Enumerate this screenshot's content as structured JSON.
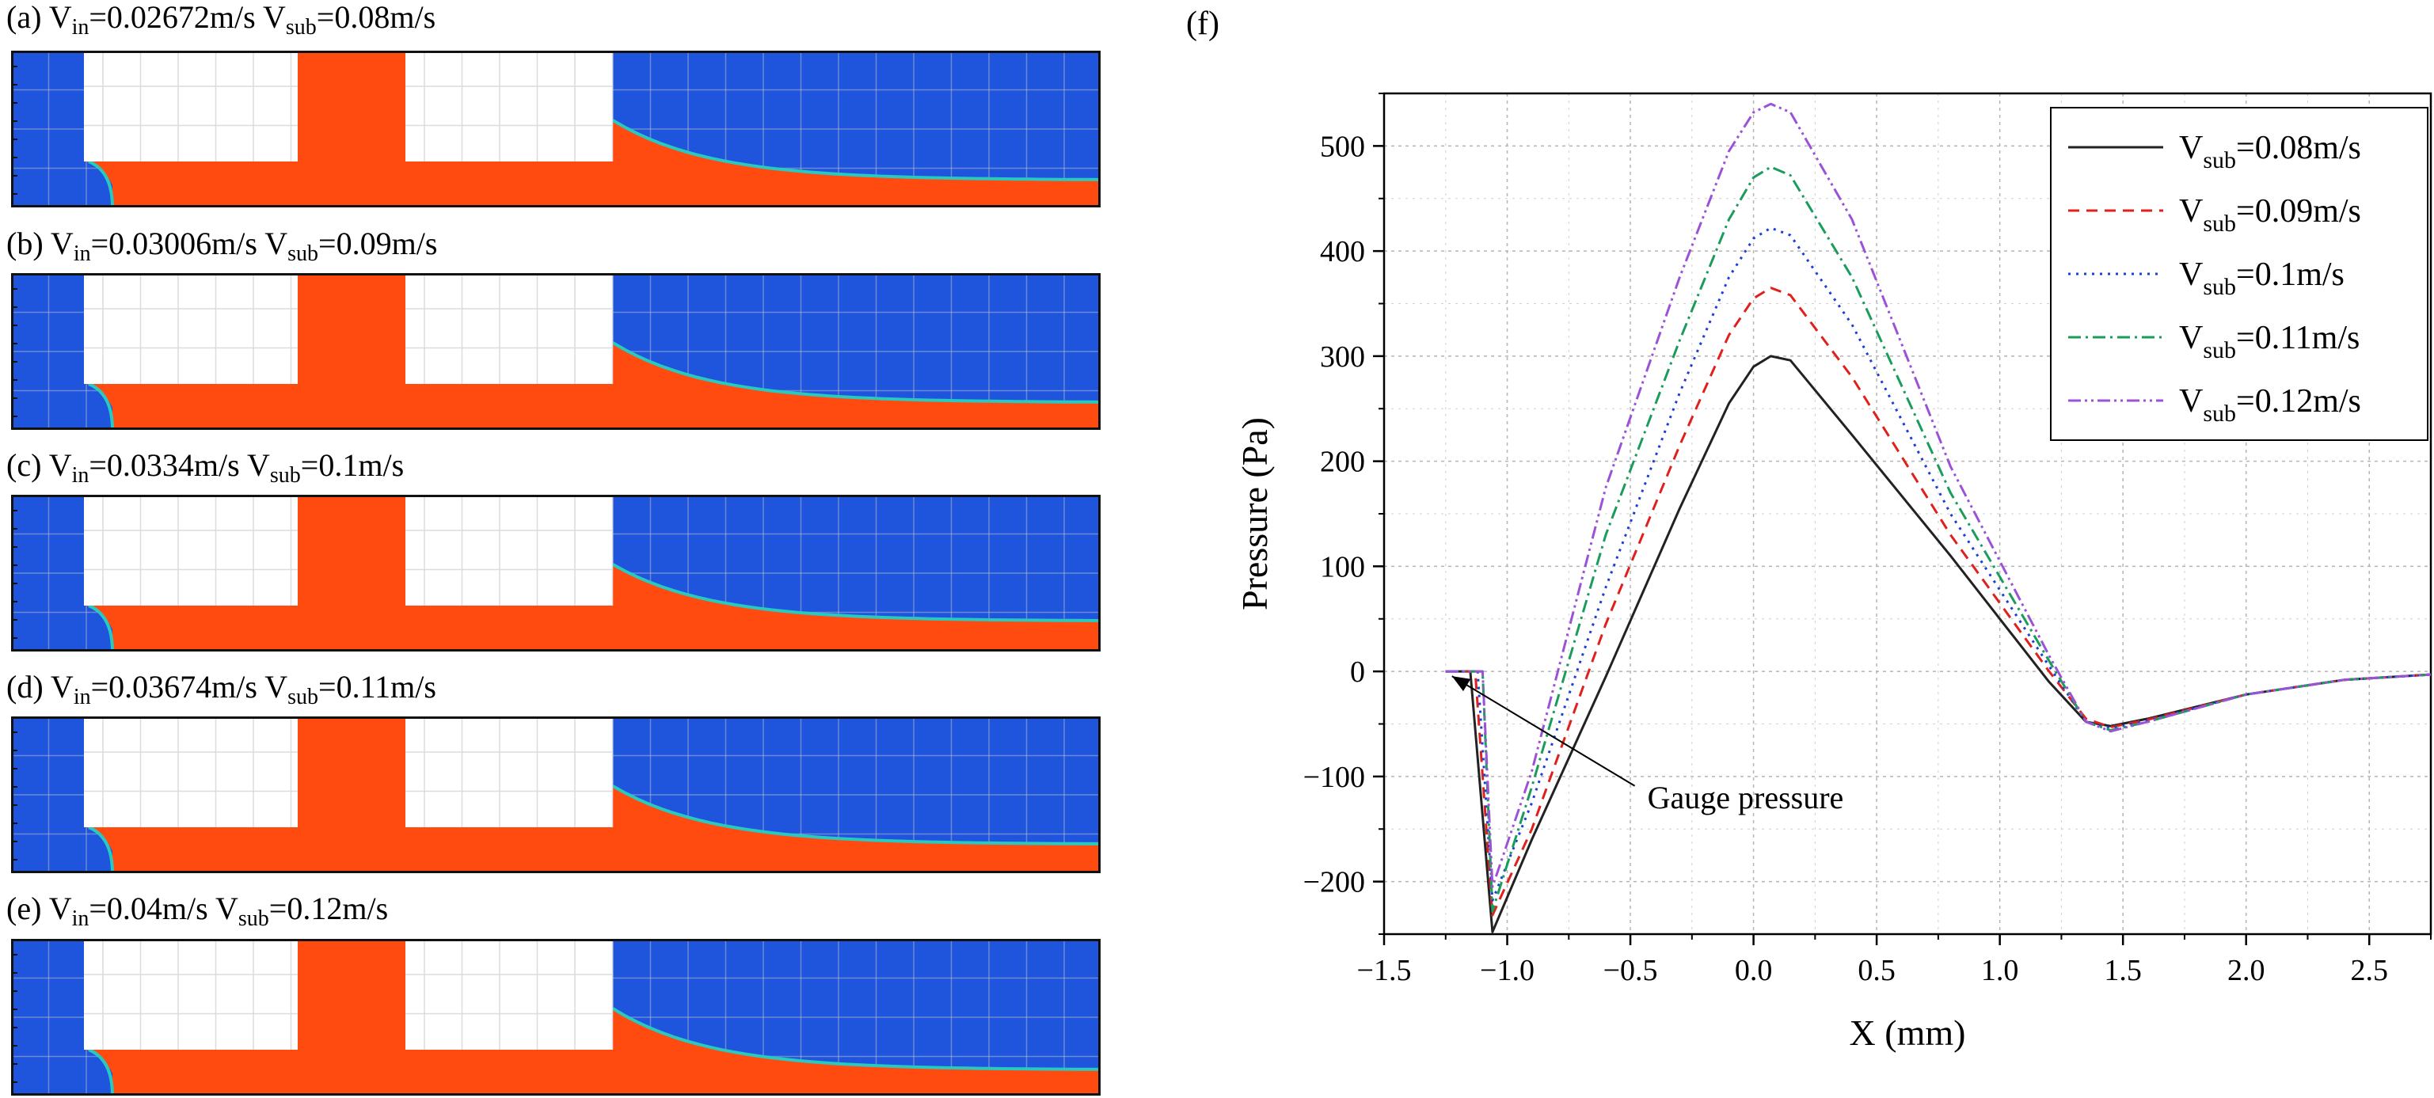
{
  "colors": {
    "gas": "#1e55dc",
    "liquid": "#ff4a10",
    "interface": "#2ac9c0",
    "block": "#ffffff",
    "grid": "#c8c8c8"
  },
  "panels": [
    {
      "letter": "(a)",
      "vin_prefix": "V",
      "vin_sub": "in",
      "vin_value": "=0.02672m/s",
      "vsub_prefix": "V",
      "vsub_sub": "sub",
      "vsub_value": "=0.08m/s",
      "tail_level": 0.2
    },
    {
      "letter": "(b)",
      "vin_prefix": "V",
      "vin_sub": "in",
      "vin_value": "=0.03006m/s",
      "vsub_prefix": "V",
      "vsub_sub": "sub",
      "vsub_value": "=0.09m/s",
      "tail_level": 0.2
    },
    {
      "letter": "(c)",
      "vin_prefix": "V",
      "vin_sub": "in",
      "vin_value": "=0.0334m/s",
      "vsub_prefix": "V",
      "vsub_sub": "sub",
      "vsub_value": "=0.1m/s",
      "tail_level": 0.22
    },
    {
      "letter": "(d)",
      "vin_prefix": "V",
      "vin_sub": "in",
      "vin_value": "=0.03674m/s",
      "vsub_prefix": "V",
      "vsub_sub": "sub",
      "vsub_value": "=0.11m/s",
      "tail_level": 0.21
    },
    {
      "letter": "(e)",
      "vin_prefix": "V",
      "vin_sub": "in",
      "vin_value": "=0.04m/s",
      "vsub_prefix": "V",
      "vsub_sub": "sub",
      "vsub_value": "=0.12m/s",
      "tail_level": 0.19
    }
  ],
  "chart_panel_label": "(f)",
  "chart_data": {
    "type": "line",
    "title": "",
    "xlabel": "X (mm)",
    "ylabel": "Pressure (Pa)",
    "xlim": [
      -1.5,
      2.75
    ],
    "ylim": [
      -250,
      550
    ],
    "xticks": [
      -1.5,
      -1.0,
      -0.5,
      0.0,
      0.5,
      1.0,
      1.5,
      2.0,
      2.5
    ],
    "xtick_labels": [
      "−1.5",
      "−1.0",
      "−0.5",
      "0.0",
      "0.5",
      "1.0",
      "1.5",
      "2.0",
      "2.5"
    ],
    "yticks": [
      -200,
      -100,
      0,
      100,
      200,
      300,
      400,
      500
    ],
    "ytick_labels": [
      "−200",
      "−100",
      "0",
      "100",
      "200",
      "300",
      "400",
      "500"
    ],
    "grid": true,
    "legend_position": "top-right",
    "annotation": {
      "text": "Gauge pressure",
      "point": [
        -1.25,
        0
      ],
      "text_at": [
        -0.45,
        -115
      ]
    },
    "series": [
      {
        "name_prefix": "V",
        "name_sub": "sub",
        "name_value": "=0.08m/s",
        "color": "#222222",
        "dash": "",
        "x": [
          -1.25,
          -1.15,
          -1.06,
          -0.9,
          -0.6,
          -0.3,
          -0.1,
          0.0,
          0.07,
          0.15,
          0.4,
          0.8,
          1.2,
          1.35,
          1.45,
          1.6,
          2.0,
          2.4,
          2.75
        ],
        "y": [
          0,
          0,
          -248,
          -160,
          -5,
          155,
          255,
          290,
          300,
          296,
          225,
          110,
          -10,
          -48,
          -52,
          -45,
          -22,
          -8,
          -3
        ]
      },
      {
        "name_prefix": "V",
        "name_sub": "sub",
        "name_value": "=0.09m/s",
        "color": "#e0201c",
        "dash": "14,9",
        "x": [
          -1.25,
          -1.13,
          -1.06,
          -0.9,
          -0.6,
          -0.3,
          -0.1,
          0.0,
          0.07,
          0.15,
          0.4,
          0.8,
          1.2,
          1.35,
          1.45,
          1.6,
          2.0,
          2.4,
          2.75
        ],
        "y": [
          0,
          0,
          -232,
          -150,
          45,
          215,
          320,
          355,
          365,
          358,
          280,
          130,
          0,
          -45,
          -53,
          -46,
          -22,
          -8,
          -3
        ]
      },
      {
        "name_prefix": "V",
        "name_sub": "sub",
        "name_value": "=0.1m/s",
        "color": "#1a3fd6",
        "dash": "3,7",
        "x": [
          -1.25,
          -1.12,
          -1.06,
          -0.9,
          -0.6,
          -0.3,
          -0.1,
          0.0,
          0.07,
          0.15,
          0.4,
          0.8,
          1.2,
          1.35,
          1.45,
          1.6,
          2.0,
          2.4,
          2.75
        ],
        "y": [
          0,
          0,
          -218,
          -125,
          80,
          265,
          375,
          412,
          422,
          415,
          330,
          150,
          5,
          -48,
          -54,
          -47,
          -22,
          -8,
          -3
        ]
      },
      {
        "name_prefix": "V",
        "name_sub": "sub",
        "name_value": "=0.11m/s",
        "color": "#1a9c5a",
        "dash": "16,6,3,6",
        "x": [
          -1.25,
          -1.1,
          -1.06,
          -0.9,
          -0.6,
          -0.3,
          -0.1,
          0.0,
          0.07,
          0.15,
          0.4,
          0.8,
          1.2,
          1.35,
          1.45,
          1.6,
          2.0,
          2.4,
          2.75
        ],
        "y": [
          0,
          0,
          -228,
          -110,
          130,
          315,
          430,
          470,
          480,
          472,
          375,
          170,
          10,
          -48,
          -56,
          -48,
          -22,
          -8,
          -3
        ]
      },
      {
        "name_prefix": "V",
        "name_sub": "sub",
        "name_value": "=0.12m/s",
        "color": "#9b52d6",
        "dash": "16,5,3,5,3,5",
        "x": [
          -1.25,
          -1.1,
          -1.06,
          -0.9,
          -0.6,
          -0.3,
          -0.1,
          0.0,
          0.07,
          0.15,
          0.4,
          0.8,
          1.2,
          1.35,
          1.45,
          1.6,
          2.0,
          2.4,
          2.75
        ],
        "y": [
          0,
          0,
          -205,
          -95,
          175,
          375,
          495,
          532,
          540,
          532,
          430,
          195,
          15,
          -48,
          -57,
          -48,
          -22,
          -8,
          -3
        ]
      }
    ]
  }
}
